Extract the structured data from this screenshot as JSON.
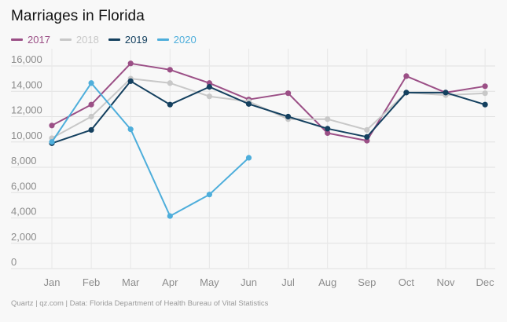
{
  "title": "Marriages in Florida",
  "source": "Quartz | qz.com | Data: Florida Department of Health Bureau of Vital Statistics",
  "chart_data": {
    "type": "line",
    "title": "Marriages in Florida",
    "xlabel": "",
    "ylabel": "",
    "categories": [
      "Jan",
      "Feb",
      "Mar",
      "Apr",
      "May",
      "Jun",
      "Jul",
      "Aug",
      "Sep",
      "Oct",
      "Nov",
      "Dec"
    ],
    "ylim": [
      0,
      16000
    ],
    "yticks": [
      0,
      2000,
      4000,
      6000,
      8000,
      10000,
      12000,
      14000,
      16000
    ],
    "ytick_labels": [
      "0",
      "2,000",
      "4,000",
      "6,000",
      "8,000",
      "10,000",
      "12,000",
      "14,000",
      "16,000"
    ],
    "grid": true,
    "legend": "top-left",
    "series": [
      {
        "name": "2017",
        "color": "#9b4f86",
        "values": [
          11300,
          12950,
          16200,
          15700,
          14650,
          13350,
          13850,
          10700,
          10100,
          15200,
          13900,
          14400
        ]
      },
      {
        "name": "2018",
        "color": "#c8c8c8",
        "values": [
          10300,
          12000,
          15000,
          14650,
          13600,
          13200,
          11800,
          11800,
          10950,
          13900,
          13700,
          13850
        ]
      },
      {
        "name": "2019",
        "color": "#14405f",
        "values": [
          9900,
          10950,
          14800,
          12950,
          14350,
          13000,
          12000,
          11050,
          10400,
          13900,
          13900,
          12950
        ]
      },
      {
        "name": "2020",
        "color": "#4eaedb",
        "values": [
          10000,
          14650,
          11000,
          4150,
          5850,
          8750,
          null,
          null,
          null,
          null,
          null,
          null
        ]
      }
    ]
  }
}
